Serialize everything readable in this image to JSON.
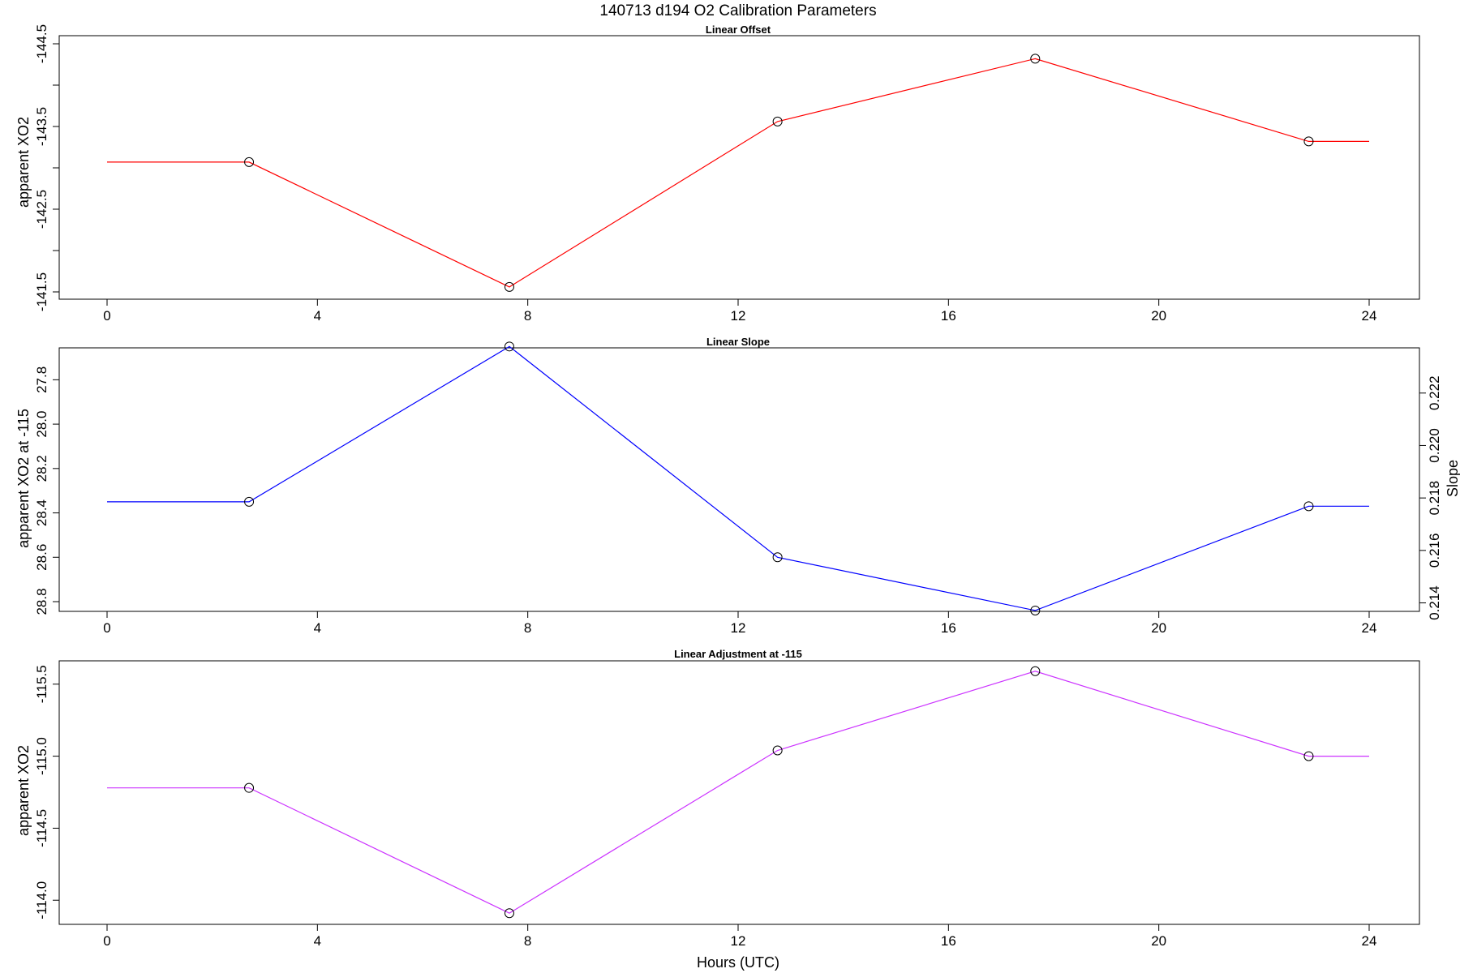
{
  "figure": {
    "title": "140713   d194   O2 Calibration Parameters",
    "xlabel": "Hours (UTC)"
  },
  "chart_data": [
    {
      "type": "line",
      "title": "Linear Offset",
      "xlabel": "",
      "ylabel": "apparent XO2",
      "xlim": [
        0,
        24
      ],
      "ylim": [
        -144.5,
        -141.5
      ],
      "x_ticks": [
        0,
        4,
        8,
        12,
        16,
        20,
        24
      ],
      "y_ticks": [
        -144.5,
        -144.0,
        -143.5,
        -143.0,
        -142.5,
        -142.0,
        -141.5
      ],
      "y_tick_labels": [
        "-144.5",
        "",
        "-143.5",
        "",
        "-142.5",
        "",
        "-141.5"
      ],
      "series": [
        {
          "color": "#ff0000",
          "x": [
            0,
            2.7,
            7.65,
            12.75,
            17.65,
            22.85,
            24
          ],
          "y": [
            -143.07,
            -143.07,
            -141.56,
            -143.56,
            -144.32,
            -143.32,
            -143.32
          ],
          "markers": [
            false,
            true,
            true,
            true,
            true,
            true,
            false
          ]
        }
      ]
    },
    {
      "type": "line",
      "title": "Linear Slope",
      "xlabel": "",
      "ylabel": "apparent XO2 at -115",
      "y2label": "Slope",
      "xlim": [
        0,
        24
      ],
      "ylim": [
        27.7,
        28.8
      ],
      "x_ticks": [
        0,
        4,
        8,
        12,
        16,
        20,
        24
      ],
      "y_ticks": [
        27.8,
        28.0,
        28.2,
        28.4,
        28.6,
        28.8
      ],
      "y_tick_labels": [
        "27.8",
        "28.0",
        "28.2",
        "28.4",
        "28.6",
        "28.8"
      ],
      "y2_ticks": [
        0.214,
        0.216,
        0.218,
        0.22,
        0.222
      ],
      "y2_tick_labels": [
        "0.214",
        "0.216",
        "0.218",
        "0.220",
        "0.222"
      ],
      "series": [
        {
          "color": "#0000ff",
          "x": [
            0,
            2.7,
            7.65,
            12.75,
            17.65,
            22.85,
            24
          ],
          "y": [
            28.35,
            28.35,
            27.65,
            28.6,
            28.84,
            28.37,
            28.37
          ],
          "markers": [
            false,
            true,
            true,
            true,
            true,
            true,
            false
          ]
        }
      ]
    },
    {
      "type": "line",
      "title": "Linear Adjustment at -115",
      "xlabel": "Hours (UTC)",
      "ylabel": "apparent XO2",
      "xlim": [
        0,
        24
      ],
      "ylim": [
        -115.6,
        -113.9
      ],
      "x_ticks": [
        0,
        4,
        8,
        12,
        16,
        20,
        24
      ],
      "y_ticks": [
        -115.5,
        -115.0,
        -114.5,
        -114.0
      ],
      "y_tick_labels": [
        "-115.5",
        "-115.0",
        "-114.5",
        "-114.0"
      ],
      "series": [
        {
          "color": "#cc33ff",
          "x": [
            0,
            2.7,
            7.65,
            12.75,
            17.65,
            22.85,
            24
          ],
          "y": [
            -114.78,
            -114.78,
            -113.91,
            -115.04,
            -115.59,
            -115.0,
            -115.0
          ],
          "markers": [
            false,
            true,
            true,
            true,
            true,
            true,
            false
          ]
        }
      ]
    }
  ]
}
